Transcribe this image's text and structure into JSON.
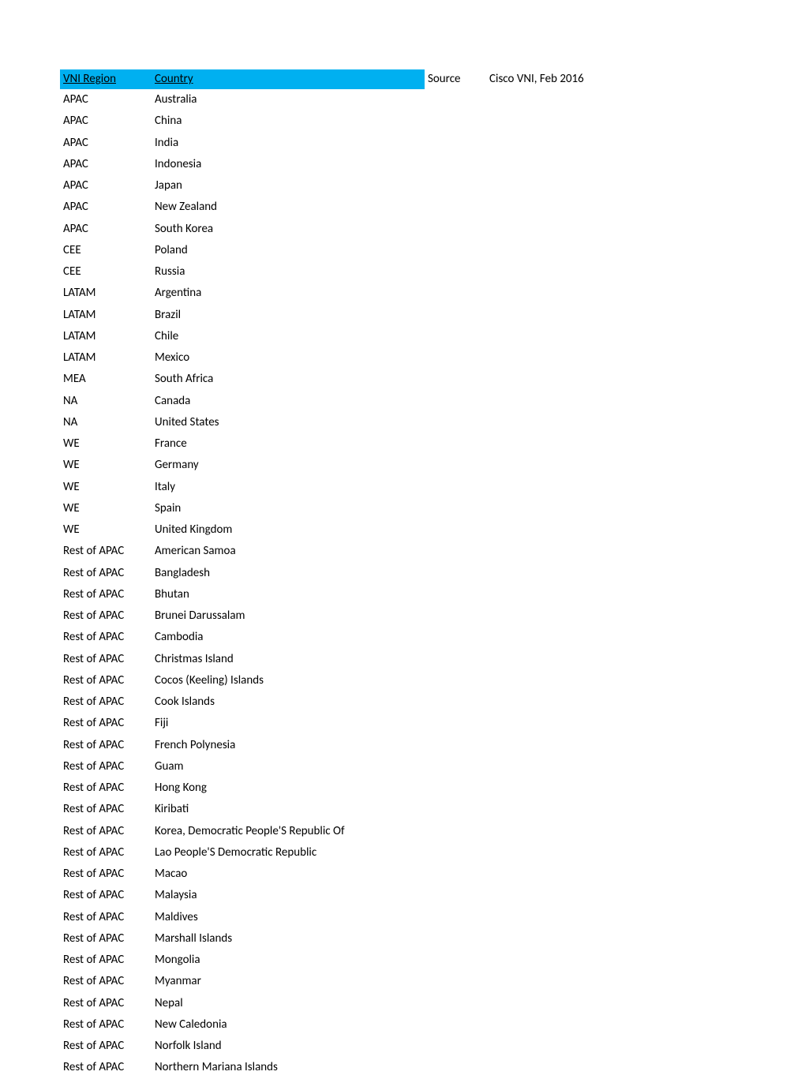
{
  "table": {
    "header": {
      "region": "VNI Region",
      "country": "Country"
    },
    "source_label": "Source",
    "source_value": "Cisco VNI, Feb 2016",
    "rows": [
      {
        "region": "APAC",
        "country": "Australia"
      },
      {
        "region": "APAC",
        "country": "China"
      },
      {
        "region": "APAC",
        "country": "India"
      },
      {
        "region": "APAC",
        "country": "Indonesia"
      },
      {
        "region": "APAC",
        "country": "Japan"
      },
      {
        "region": "APAC",
        "country": "New Zealand"
      },
      {
        "region": "APAC",
        "country": "South Korea"
      },
      {
        "region": "CEE",
        "country": "Poland"
      },
      {
        "region": "CEE",
        "country": "Russia"
      },
      {
        "region": "LATAM",
        "country": "Argentina"
      },
      {
        "region": "LATAM",
        "country": "Brazil"
      },
      {
        "region": "LATAM",
        "country": "Chile"
      },
      {
        "region": "LATAM",
        "country": "Mexico"
      },
      {
        "region": "MEA",
        "country": "South Africa"
      },
      {
        "region": "NA",
        "country": "Canada"
      },
      {
        "region": "NA",
        "country": "United States"
      },
      {
        "region": "WE",
        "country": "France"
      },
      {
        "region": "WE",
        "country": "Germany"
      },
      {
        "region": "WE",
        "country": "Italy"
      },
      {
        "region": "WE",
        "country": "Spain"
      },
      {
        "region": "WE",
        "country": "United Kingdom"
      },
      {
        "region": "Rest of APAC",
        "country": "American Samoa"
      },
      {
        "region": "Rest of APAC",
        "country": "Bangladesh"
      },
      {
        "region": "Rest of APAC",
        "country": "Bhutan"
      },
      {
        "region": "Rest of APAC",
        "country": "Brunei Darussalam"
      },
      {
        "region": "Rest of APAC",
        "country": "Cambodia"
      },
      {
        "region": "Rest of APAC",
        "country": "Christmas Island"
      },
      {
        "region": "Rest of APAC",
        "country": "Cocos (Keeling) Islands"
      },
      {
        "region": "Rest of APAC",
        "country": "Cook Islands"
      },
      {
        "region": "Rest of APAC",
        "country": "Fiji"
      },
      {
        "region": "Rest of APAC",
        "country": "French Polynesia"
      },
      {
        "region": "Rest of APAC",
        "country": "Guam"
      },
      {
        "region": "Rest of APAC",
        "country": "Hong Kong"
      },
      {
        "region": "Rest of APAC",
        "country": "Kiribati"
      },
      {
        "region": "Rest of APAC",
        "country": "Korea, Democratic People'S Republic Of"
      },
      {
        "region": "Rest of APAC",
        "country": "Lao People'S Democratic Republic"
      },
      {
        "region": "Rest of APAC",
        "country": "Macao"
      },
      {
        "region": "Rest of APAC",
        "country": "Malaysia"
      },
      {
        "region": "Rest of APAC",
        "country": "Maldives"
      },
      {
        "region": "Rest of APAC",
        "country": "Marshall Islands"
      },
      {
        "region": "Rest of APAC",
        "country": "Mongolia"
      },
      {
        "region": "Rest of APAC",
        "country": "Myanmar"
      },
      {
        "region": "Rest of APAC",
        "country": "Nepal"
      },
      {
        "region": "Rest of APAC",
        "country": "New Caledonia"
      },
      {
        "region": "Rest of APAC",
        "country": "Norfolk Island"
      },
      {
        "region": "Rest of APAC",
        "country": "Northern Mariana Islands"
      }
    ],
    "colors": {
      "header_bg": "#00b0f0",
      "header_text": "#000000",
      "body_text": "#000000",
      "page_bg": "#ffffff"
    }
  }
}
